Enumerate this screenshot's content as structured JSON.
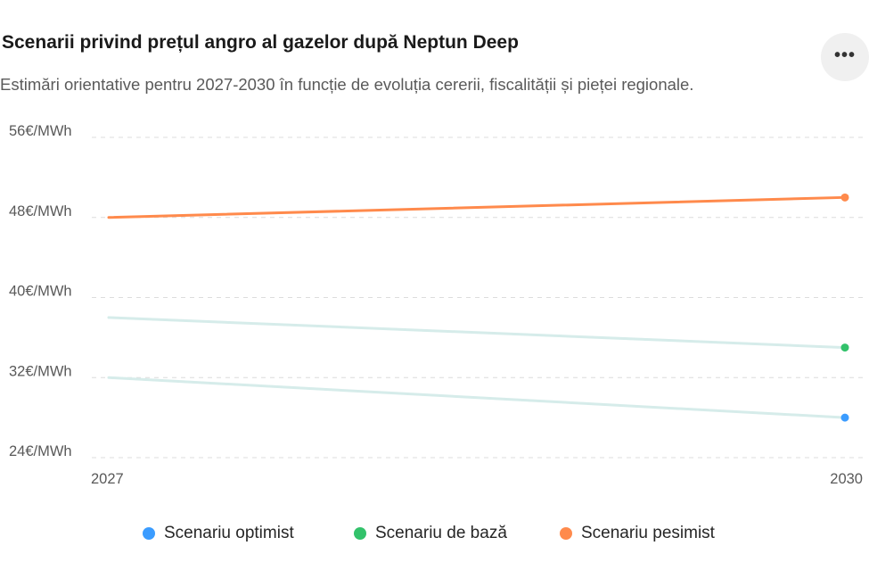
{
  "header": {
    "title": "Scenarii privind prețul angro al gazelor după Neptun Deep",
    "subtitle": "Estimări orientative pentru 2027-2030 în funcție de evoluția cererii, fiscalității și pieței regionale.",
    "more_icon": "more-horizontal-icon",
    "more_label": "..."
  },
  "colors": {
    "optimist": "#3b9cff",
    "baza": "#33c26b",
    "pesimist": "#ff8a4c",
    "faded_line": "#d6ecea",
    "grid": "#dcdcdc"
  },
  "chart_data": {
    "type": "line",
    "title": "Scenarii privind prețul angro al gazelor după Neptun Deep",
    "subtitle": "Estimări orientative pentru 2027-2030 în funcție de evoluția cererii, fiscalității și pieței regionale.",
    "x": [
      "2027",
      "2030"
    ],
    "y_ticks": [
      {
        "value": 56,
        "label": "56€/MWh"
      },
      {
        "value": 48,
        "label": "48€/MWh"
      },
      {
        "value": 40,
        "label": "40€/MWh"
      },
      {
        "value": 32,
        "label": "32€/MWh"
      },
      {
        "value": 24,
        "label": "24€/MWh"
      }
    ],
    "ylim": [
      24,
      56
    ],
    "grid": true,
    "legend_position": "bottom",
    "series": [
      {
        "name": "Scenariu optimist",
        "key": "optimist",
        "values": [
          32,
          28
        ],
        "highlighted": false
      },
      {
        "name": "Scenariu de bază",
        "key": "baza",
        "values": [
          38,
          35
        ],
        "highlighted": false
      },
      {
        "name": "Scenariu pesimist",
        "key": "pesimist",
        "values": [
          48,
          50
        ],
        "highlighted": true
      }
    ]
  }
}
